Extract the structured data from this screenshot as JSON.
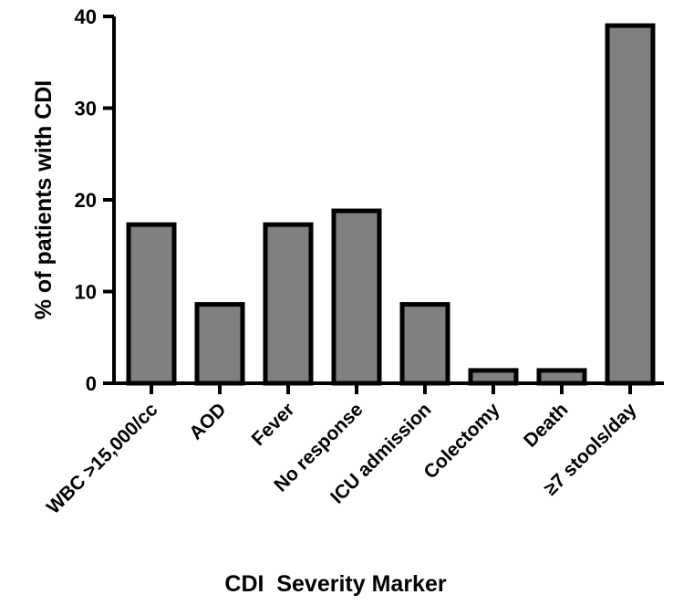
{
  "chart_data": {
    "type": "bar",
    "categories": [
      "WBC >15,000/cc",
      "AOD",
      "Fever",
      "No response",
      "ICU admission",
      "Colectomy",
      "Death",
      "≥7 stools/day"
    ],
    "values": [
      17.3,
      8.6,
      17.3,
      18.8,
      8.6,
      1.4,
      1.4,
      39.0
    ],
    "xlabel": "CDI  Severity Marker",
    "ylabel": "% of patients with CDI",
    "ylim": [
      0,
      40
    ],
    "yticks": [
      0,
      10,
      20,
      30,
      40
    ],
    "grid": false,
    "legend": "none",
    "bar_color": "#808080",
    "edge_color": "#000000"
  }
}
